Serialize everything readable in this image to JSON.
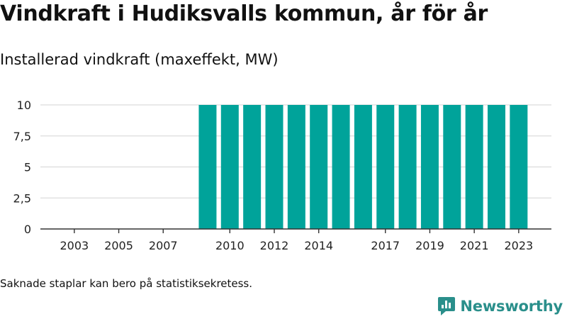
{
  "title": "Vindkraft i Hudiksvalls kommun, år för år",
  "subtitle": "Installerad vindkraft (maxeffekt, MW)",
  "note": "Saknade staplar kan bero på statistiksekretess.",
  "brand": {
    "name": "Newsworthy",
    "icon": "newsworthy-logo-icon",
    "color": "#2a8f8b"
  },
  "chart_data": {
    "type": "bar",
    "x": [
      2002,
      2003,
      2004,
      2005,
      2006,
      2007,
      2008,
      2009,
      2010,
      2011,
      2012,
      2013,
      2014,
      2015,
      2016,
      2017,
      2018,
      2019,
      2020,
      2021,
      2022,
      2023
    ],
    "values": [
      null,
      null,
      null,
      null,
      null,
      null,
      null,
      10,
      10,
      10,
      10,
      10,
      10,
      10,
      10,
      10,
      10,
      10,
      10,
      10,
      10,
      10
    ],
    "x_tick_labels": [
      "2003",
      "2005",
      "2007",
      "2010",
      "2012",
      "2014",
      "2017",
      "2019",
      "2021",
      "2023"
    ],
    "y_ticks": [
      0,
      2.5,
      5,
      7.5,
      10
    ],
    "y_tick_labels": [
      "0",
      "2,5",
      "5",
      "7,5",
      "10"
    ],
    "ylim": [
      0,
      10
    ],
    "xlabel": "",
    "ylabel": "",
    "grid": true,
    "bar_color": "#00a39a"
  }
}
